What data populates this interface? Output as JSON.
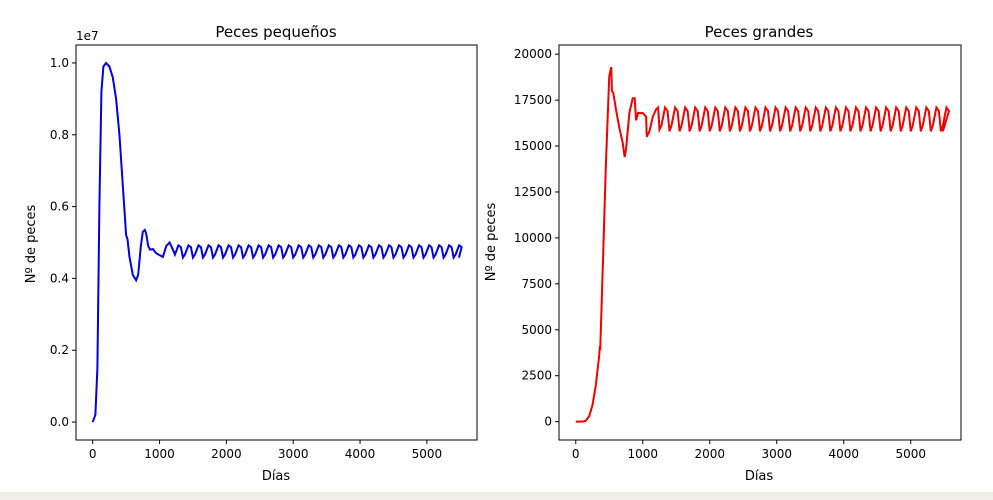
{
  "chart_data": [
    {
      "type": "line",
      "title": "Peces pequeños",
      "xlabel": "Días",
      "ylabel": "Nº de peces",
      "offset_text": "1e7",
      "xlim": [
        -250,
        5750
      ],
      "ylim": [
        -0.05,
        1.05
      ],
      "xticks": [
        0,
        1000,
        2000,
        3000,
        4000,
        5000
      ],
      "yticks": [
        0.0,
        0.2,
        0.4,
        0.6,
        0.8,
        1.0
      ],
      "ytick_labels": [
        "0.0",
        "0.2",
        "0.4",
        "0.6",
        "0.8",
        "1.0"
      ],
      "color": "#0000dd",
      "series": [
        {
          "x": [
            0,
            40,
            70,
            100,
            130,
            160,
            200,
            250,
            300,
            350,
            400,
            450,
            500,
            520,
            550,
            600,
            650,
            680,
            720,
            750,
            780,
            800,
            830,
            860,
            900,
            950,
            1000,
            1050,
            1100,
            1150,
            1200
          ],
          "y": [
            0.0,
            0.02,
            0.15,
            0.6,
            0.92,
            0.99,
            1.0,
            0.99,
            0.96,
            0.9,
            0.8,
            0.66,
            0.52,
            0.51,
            0.46,
            0.41,
            0.395,
            0.41,
            0.49,
            0.53,
            0.535,
            0.525,
            0.49,
            0.48,
            0.482,
            0.47,
            0.465,
            0.46,
            0.49,
            0.5,
            0.48
          ]
        }
      ],
      "oscillation": {
        "start": 1200,
        "end": 5480,
        "period": 150,
        "low": 0.458,
        "high": 0.492
      }
    },
    {
      "type": "line",
      "title": "Peces grandes",
      "xlabel": "Días",
      "ylabel": "Nº de peces",
      "xlim": [
        -250,
        5750
      ],
      "ylim": [
        -1000,
        20500
      ],
      "xticks": [
        0,
        1000,
        2000,
        3000,
        4000,
        5000
      ],
      "yticks": [
        0,
        2500,
        5000,
        7500,
        10000,
        12500,
        15000,
        17500,
        20000
      ],
      "ytick_labels": [
        "0",
        "2500",
        "5000",
        "7500",
        "10000",
        "12500",
        "15000",
        "17500",
        "20000"
      ],
      "color": "#ee0000",
      "series": [
        {
          "x": [
            0,
            100,
            150,
            200,
            250,
            300,
            350,
            360,
            365,
            400,
            450,
            500,
            530,
            540,
            560,
            600,
            650,
            700,
            730,
            750,
            800,
            850,
            880,
            900,
            930,
            1000,
            1050,
            1060,
            1100,
            1150,
            1200,
            1230,
            1250
          ],
          "y": [
            0,
            0,
            50,
            300,
            900,
            2000,
            3600,
            4100,
            3900,
            8000,
            14000,
            18800,
            19300,
            18000,
            17900,
            17000,
            16000,
            15200,
            14400,
            14800,
            16800,
            17600,
            17600,
            16400,
            16800,
            16800,
            16600,
            15500,
            15800,
            16600,
            17000,
            17100,
            15900
          ]
        }
      ],
      "oscillation": {
        "start": 1250,
        "end": 5480,
        "period": 150,
        "low": 15800,
        "high": 17100
      }
    }
  ]
}
